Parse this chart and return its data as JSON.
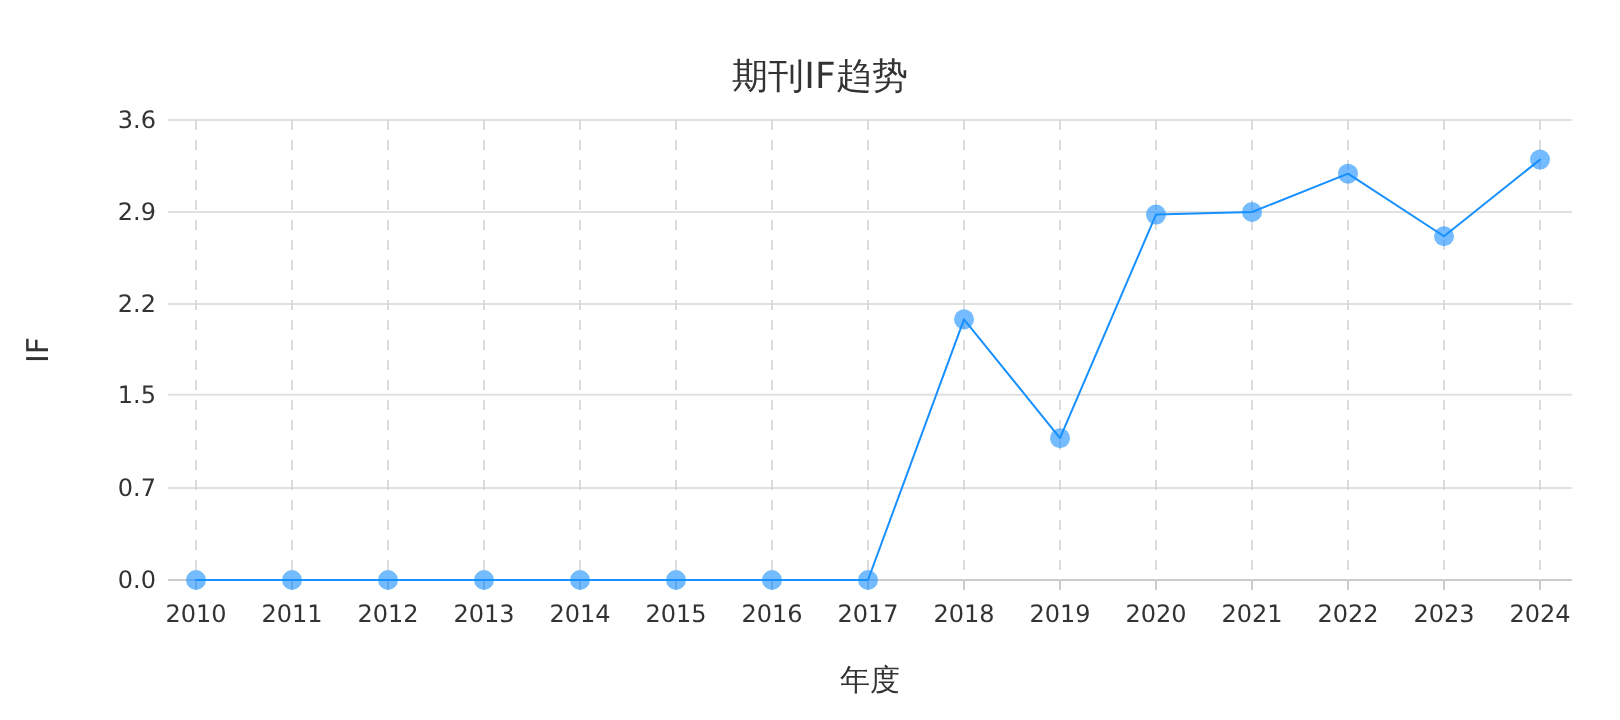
{
  "chart_data": {
    "type": "line",
    "title": "期刊IF趋势",
    "xlabel": "年度",
    "ylabel": "IF",
    "categories": [
      "2010",
      "2011",
      "2012",
      "2013",
      "2014",
      "2015",
      "2016",
      "2017",
      "2018",
      "2019",
      "2020",
      "2021",
      "2022",
      "2023",
      "2024"
    ],
    "series": [
      {
        "color": "#1890ff",
        "values": [
          0,
          0,
          0,
          0,
          0,
          0,
          0,
          0,
          2.04,
          1.11,
          2.86,
          2.88,
          3.18,
          2.69,
          3.29
        ]
      }
    ],
    "ylim": [
      0,
      3.6
    ],
    "yticks": [
      {
        "value": 0,
        "label": "0.0"
      },
      {
        "value": 0.72,
        "label": "0.7"
      },
      {
        "value": 1.45,
        "label": "1.5"
      },
      {
        "value": 2.16,
        "label": "2.2"
      },
      {
        "value": 2.88,
        "label": "2.9"
      },
      {
        "value": 3.6,
        "label": "3.6"
      }
    ],
    "grid": true,
    "marker": "circle",
    "line_style": "solid"
  }
}
